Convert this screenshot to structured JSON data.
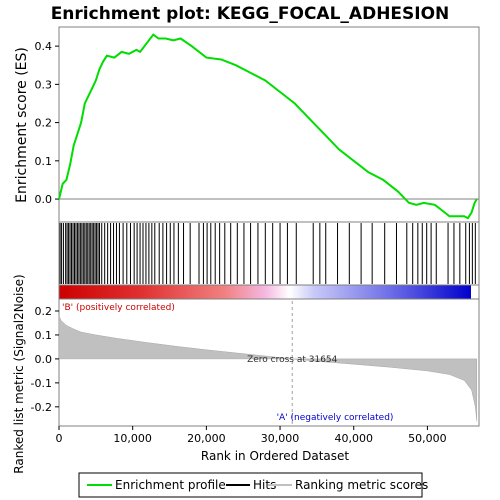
{
  "chart_data": {
    "type": "line",
    "title": "Enrichment plot: KEGG_FOCAL_ADHESION",
    "xlabel": "Rank in Ordered Dataset",
    "xlim": [
      0,
      57000
    ],
    "x_ticks": [
      "0",
      "10,000",
      "20,000",
      "30,000",
      "40,000",
      "50,000"
    ],
    "es_panel": {
      "ylabel": "Enrichment score (ES)",
      "ylim": [
        -0.06,
        0.45
      ],
      "y_ticks": [
        "0.0",
        "0.1",
        "0.2",
        "0.3",
        "0.4"
      ],
      "series": [
        {
          "name": "Enrichment profile",
          "color": "#00dd00",
          "points": [
            [
              0,
              0.0
            ],
            [
              500,
              0.04
            ],
            [
              1000,
              0.05
            ],
            [
              1500,
              0.09
            ],
            [
              2000,
              0.14
            ],
            [
              2500,
              0.17
            ],
            [
              3000,
              0.2
            ],
            [
              3500,
              0.25
            ],
            [
              4000,
              0.27
            ],
            [
              4500,
              0.29
            ],
            [
              5000,
              0.31
            ],
            [
              5500,
              0.34
            ],
            [
              6000,
              0.36
            ],
            [
              6500,
              0.375
            ],
            [
              7500,
              0.37
            ],
            [
              8500,
              0.385
            ],
            [
              9500,
              0.38
            ],
            [
              10500,
              0.39
            ],
            [
              11000,
              0.385
            ],
            [
              12000,
              0.41
            ],
            [
              12800,
              0.43
            ],
            [
              13500,
              0.42
            ],
            [
              14500,
              0.42
            ],
            [
              15500,
              0.415
            ],
            [
              16500,
              0.42
            ],
            [
              18000,
              0.4
            ],
            [
              20000,
              0.37
            ],
            [
              22000,
              0.365
            ],
            [
              24000,
              0.35
            ],
            [
              26000,
              0.33
            ],
            [
              28000,
              0.31
            ],
            [
              30000,
              0.28
            ],
            [
              32000,
              0.25
            ],
            [
              34000,
              0.21
            ],
            [
              36000,
              0.17
            ],
            [
              38000,
              0.13
            ],
            [
              40000,
              0.1
            ],
            [
              42000,
              0.07
            ],
            [
              44000,
              0.05
            ],
            [
              46000,
              0.02
            ],
            [
              47500,
              -0.01
            ],
            [
              48500,
              -0.015
            ],
            [
              49500,
              -0.01
            ],
            [
              51000,
              -0.015
            ],
            [
              52000,
              -0.03
            ],
            [
              53000,
              -0.045
            ],
            [
              54000,
              -0.045
            ],
            [
              55000,
              -0.045
            ],
            [
              55500,
              -0.05
            ],
            [
              56000,
              -0.035
            ],
            [
              56400,
              -0.01
            ],
            [
              56700,
              0.0
            ]
          ]
        }
      ]
    },
    "hits": {
      "name": "Hits",
      "color": "#000000",
      "x": [
        150,
        350,
        600,
        900,
        1100,
        1300,
        1500,
        1700,
        1900,
        2100,
        2300,
        2500,
        2700,
        2900,
        3100,
        3300,
        3500,
        3700,
        3900,
        4100,
        4300,
        4500,
        4700,
        4900,
        5100,
        5300,
        5500,
        5800,
        6200,
        6600,
        7000,
        7400,
        7800,
        8200,
        8700,
        9200,
        9700,
        10200,
        10600,
        11000,
        11400,
        11800,
        12200,
        12600,
        13000,
        13600,
        14100,
        14600,
        15100,
        15600,
        16200,
        16900,
        17800,
        19000,
        19600,
        20100,
        20600,
        21200,
        21800,
        22500,
        23300,
        24200,
        25100,
        26000,
        27000,
        28000,
        29000,
        30000,
        31000,
        32200,
        34500,
        35400,
        36200,
        37800,
        39400,
        41000,
        42500,
        44200,
        45800,
        47200,
        48000,
        48700,
        49300,
        49900,
        50500,
        51200,
        52800,
        53600,
        54400,
        55200,
        55700,
        56100,
        56500
      ]
    },
    "ranking_metric": {
      "name": "Ranking metric scores",
      "ylabel": "Ranked list metric (Signal2Noise)",
      "ylim": [
        -0.28,
        0.25
      ],
      "y_ticks": [
        "0.2",
        "0.1",
        "0.0",
        "-0.1",
        "-0.2"
      ],
      "fill_color": "#c0c0c0",
      "points": [
        [
          0,
          0.18
        ],
        [
          300,
          0.16
        ],
        [
          1000,
          0.14
        ],
        [
          2000,
          0.125
        ],
        [
          3000,
          0.112
        ],
        [
          5000,
          0.1
        ],
        [
          8000,
          0.085
        ],
        [
          12000,
          0.068
        ],
        [
          16000,
          0.052
        ],
        [
          20000,
          0.038
        ],
        [
          24000,
          0.025
        ],
        [
          28000,
          0.012
        ],
        [
          31654,
          0.0
        ],
        [
          35000,
          -0.01
        ],
        [
          40000,
          -0.022
        ],
        [
          45000,
          -0.035
        ],
        [
          50000,
          -0.05
        ],
        [
          53000,
          -0.065
        ],
        [
          55000,
          -0.09
        ],
        [
          56000,
          -0.13
        ],
        [
          56500,
          -0.2
        ],
        [
          56700,
          -0.26
        ]
      ],
      "zero_cross": 31654,
      "zero_cross_label": "Zero cross at 31654",
      "pos_label": "'B' (positively correlated)",
      "neg_label": "'A' (negatively correlated)",
      "pos_color": "#cc0000",
      "neg_color": "#0000cc"
    },
    "legend": {
      "placement": "bottom",
      "entries": [
        "Enrichment profile",
        "Hits",
        "Ranking metric scores"
      ]
    }
  }
}
